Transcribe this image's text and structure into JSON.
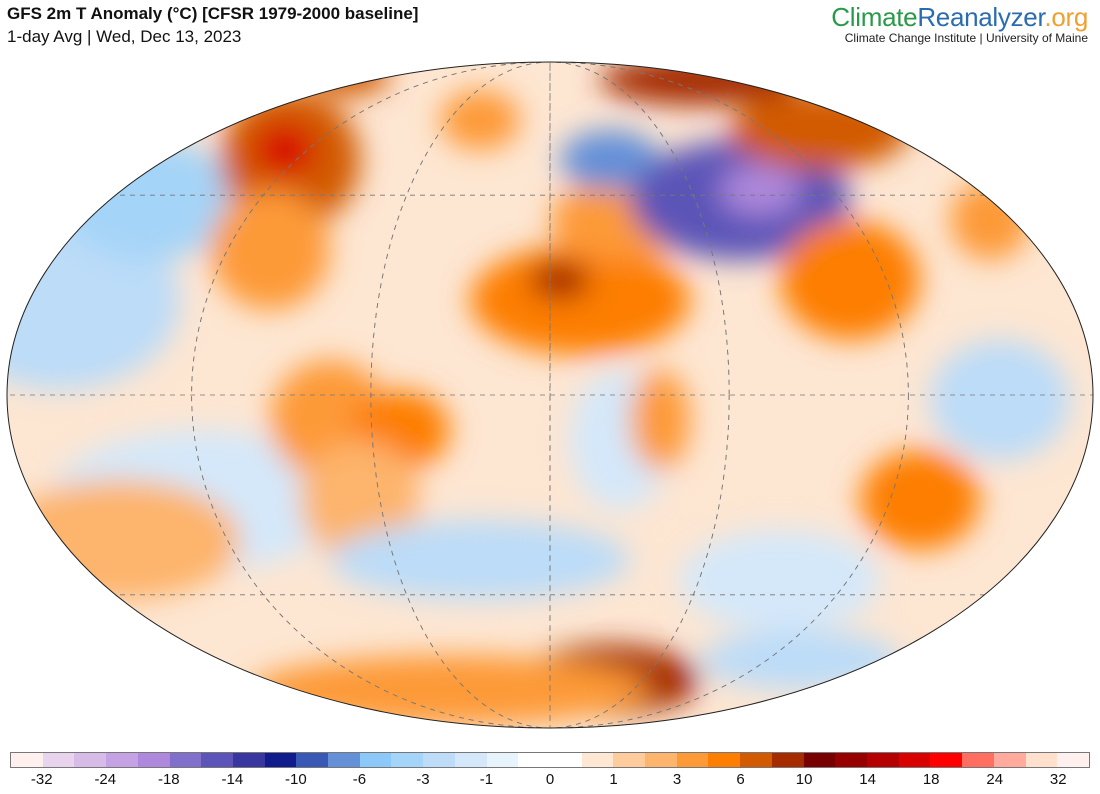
{
  "header": {
    "title": "GFS 2m T Anomaly (°C) [CFSR 1979-2000 baseline]",
    "subtitle": "1-day Avg | Wed, Dec 13, 2023"
  },
  "logo": {
    "part1": "Climate",
    "part2": "Reanalyzer",
    "part3": ".org",
    "tagline": "Climate Change Institute | University of Maine"
  },
  "colorbar": {
    "colors": [
      "#fff0f0",
      "#e8d4ec",
      "#d8bce8",
      "#c4a2e4",
      "#ae88dc",
      "#8070cc",
      "#5c54b8",
      "#3a36a0",
      "#101c8c",
      "#3858b4",
      "#6490d8",
      "#8cc8f8",
      "#a4d4f8",
      "#bcdcf8",
      "#d4e8fa",
      "#e8f4fc",
      "#ffffff",
      "#ffffff",
      "#fee8d4",
      "#fecc9c",
      "#fdb46c",
      "#fd9a38",
      "#fd7e00",
      "#d25a00",
      "#a42c00",
      "#780000",
      "#960000",
      "#b40000",
      "#d80000",
      "#ff0000",
      "#ff6e60",
      "#ffaa9c",
      "#fee0cc",
      "#fff0f0"
    ],
    "labels": [
      "-32",
      "-24",
      "-18",
      "-14",
      "-10",
      "-6",
      "-3",
      "-1",
      "0",
      "1",
      "3",
      "6",
      "10",
      "14",
      "18",
      "24",
      "32"
    ]
  }
}
